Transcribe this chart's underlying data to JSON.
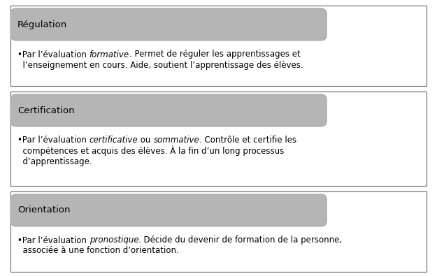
{
  "boxes": [
    {
      "header": "Régulation",
      "lines_parts": [
        [
          [
            "•Par l’évaluation ",
            false
          ],
          [
            "formative",
            true
          ],
          [
            ". Permet de réguler les apprentissages et",
            false
          ]
        ],
        [
          [
            "  l’enseignement en cours. Aide, soutient l’apprentissage des élèves.",
            false
          ]
        ]
      ]
    },
    {
      "header": "Certification",
      "lines_parts": [
        [
          [
            "•Par l’évaluation ",
            false
          ],
          [
            "certificative",
            true
          ],
          [
            " ou ",
            false
          ],
          [
            "sommative",
            true
          ],
          [
            ". Contrôle et certifie les",
            false
          ]
        ],
        [
          [
            "  compétences et acquis des élèves. À la fin d’un long processus",
            false
          ]
        ],
        [
          [
            "  d’apprentissage.",
            false
          ]
        ]
      ]
    },
    {
      "header": "Orientation",
      "lines_parts": [
        [
          [
            "•Par l’évaluation ",
            false
          ],
          [
            "pronostique",
            true
          ],
          [
            ". Décide du devenir de formation de la personne,",
            false
          ]
        ],
        [
          [
            "  associée à une fonction d’orientation.",
            false
          ]
        ]
      ]
    }
  ],
  "header_bg": "#b5b5b5",
  "header_text_color": "#000000",
  "outer_box_bg": "#ffffff",
  "outer_box_edge": "#666666",
  "header_edge": "#999999",
  "font_size_header": 9.5,
  "font_size_body": 8.5,
  "fig_bg": "#ffffff",
  "fig_width": 6.25,
  "fig_height": 3.95,
  "dpi": 100
}
